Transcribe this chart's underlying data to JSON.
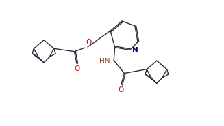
{
  "background_color": "#ffffff",
  "line_color": "#2a2a3a",
  "o_color": "#cc0000",
  "n_color": "#000080",
  "hn_color": "#8B4513",
  "figsize": [
    3.27,
    1.85
  ],
  "dpi": 100,
  "lw": 1.0,
  "xlim": [
    0,
    10
  ],
  "ylim": [
    0,
    6
  ]
}
